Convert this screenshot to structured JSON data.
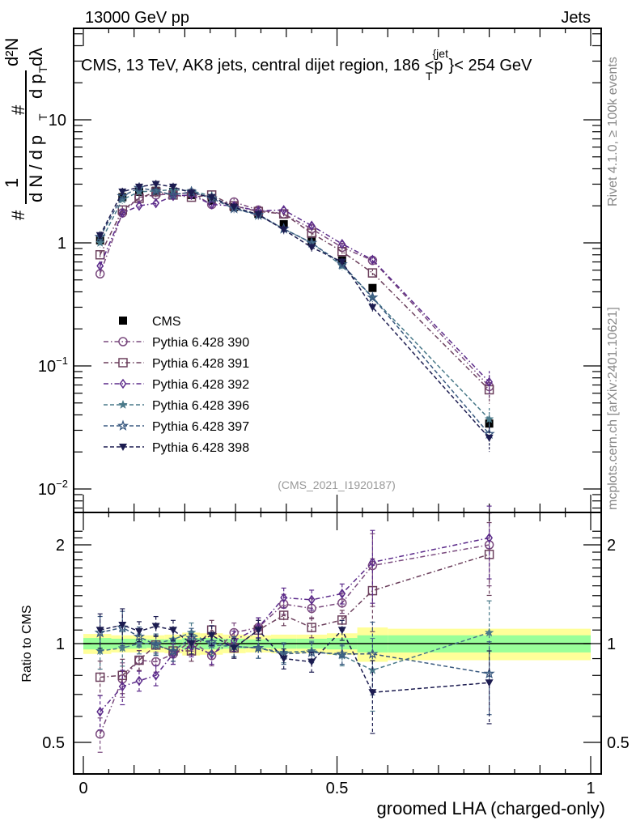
{
  "header": {
    "left_label": "13000 GeV pp",
    "right_label": "Jets"
  },
  "side_labels": {
    "rivet": "Rivet 4.1.0, ≥ 100k events",
    "mcplots": "mcplots.cern.ch [arXiv:2401.10621]"
  },
  "chart_data": [
    {
      "type": "line",
      "panel": "main",
      "title": "CMS, 13 TeV, AK8 jets, central dijet region, 186 <p_T^{jet}< 254 GeV",
      "title_parts": {
        "main": "CMS, 13 TeV, AK8 jets, central dijet region, 186 <p",
        "sup": "{jet",
        "sub": "T",
        "tail": "}< 254 GeV"
      },
      "ylabel_parts": {
        "hash1": "#",
        "one": "1",
        "den1": "d N / d p",
        "sub1": "T",
        "hash2": "#",
        "num2": "d²N",
        "den2": "d p",
        "sub2": "T",
        "dlam": " dλ"
      },
      "xlabel": "",
      "yscale": "log",
      "ylim": [
        0.006,
        60
      ],
      "xlim": [
        -0.01,
        1.0
      ],
      "yticks": [
        {
          "v": 0.01,
          "label": "10",
          "exp": "−2"
        },
        {
          "v": 0.1,
          "label": "10",
          "exp": "−1"
        },
        {
          "v": 1,
          "label": "1",
          "exp": ""
        },
        {
          "v": 10,
          "label": "10",
          "exp": ""
        }
      ],
      "annotation": "(CMS_2021_I1920187)",
      "legend_position": "center-left",
      "x": [
        0.033,
        0.077,
        0.11,
        0.143,
        0.177,
        0.213,
        0.253,
        0.297,
        0.345,
        0.395,
        0.45,
        0.51,
        0.57,
        0.8
      ],
      "series": [
        {
          "name": "CMS",
          "marker": "filled-square",
          "color": "#000000",
          "dash": "none",
          "values": [
            1.05,
            2.35,
            2.6,
            2.65,
            2.6,
            2.45,
            2.2,
            1.95,
            1.72,
            1.42,
            1.05,
            0.72,
            0.43,
            0.034
          ]
        },
        {
          "name": "Pythia 6.428 390",
          "marker": "open-circle",
          "color": "#7a4a7e",
          "dash": "dashdot",
          "values": [
            0.56,
            1.75,
            2.35,
            2.45,
            2.5,
            2.55,
            2.05,
            2.15,
            1.85,
            1.72,
            1.3,
            0.92,
            0.72,
            0.068
          ]
        },
        {
          "name": "Pythia 6.428 391",
          "marker": "open-square",
          "color": "#6b3f5c",
          "dash": "dashdot",
          "values": [
            0.8,
            1.85,
            2.3,
            2.6,
            2.45,
            2.35,
            2.45,
            2.0,
            1.8,
            1.72,
            1.2,
            0.85,
            0.57,
            0.064
          ]
        },
        {
          "name": "Pythia 6.428 392",
          "marker": "open-diamond",
          "color": "#5b2a8a",
          "dash": "dashdot",
          "values": [
            0.65,
            1.75,
            2.0,
            2.1,
            2.4,
            2.45,
            2.05,
            2.0,
            1.82,
            1.85,
            1.38,
            0.98,
            0.73,
            0.074
          ]
        },
        {
          "name": "Pythia 6.428 396",
          "marker": "filled-star",
          "color": "#4a7a8a",
          "dash": "dashed",
          "values": [
            1.0,
            2.25,
            2.6,
            2.65,
            2.7,
            2.65,
            2.4,
            1.9,
            1.7,
            1.3,
            1.0,
            0.65,
            0.36,
            0.037
          ]
        },
        {
          "name": "Pythia 6.428 397",
          "marker": "open-star",
          "color": "#3a5a80",
          "dash": "dashed",
          "values": [
            1.12,
            2.4,
            2.8,
            2.65,
            2.45,
            2.6,
            2.3,
            1.9,
            1.68,
            1.3,
            1.0,
            0.67,
            0.36,
            0.028
          ]
        },
        {
          "name": "Pythia 6.428 398",
          "marker": "filled-triangle-down",
          "color": "#1c1c50",
          "dash": "dashed",
          "values": [
            1.15,
            2.6,
            2.85,
            3.0,
            2.85,
            2.55,
            2.35,
            1.95,
            1.7,
            1.28,
            0.92,
            0.7,
            0.3,
            0.026
          ]
        }
      ]
    },
    {
      "type": "line",
      "panel": "ratio",
      "ylabel": "Ratio to CMS",
      "xlabel": "groomed LHA (charged-only)",
      "ylim": [
        0.4,
        2.3
      ],
      "xlim": [
        -0.01,
        1.0
      ],
      "yticks": [
        {
          "v": 0.5,
          "label": "0.5"
        },
        {
          "v": 1,
          "label": "1"
        },
        {
          "v": 2,
          "label": "2"
        }
      ],
      "xticks": [
        {
          "v": 0,
          "label": "0"
        },
        {
          "v": 0.5,
          "label": "0.5"
        },
        {
          "v": 1,
          "label": "1"
        }
      ],
      "uncertainty_bands": {
        "edges": [
          0.0,
          0.055,
          0.09,
          0.125,
          0.16,
          0.195,
          0.23,
          0.275,
          0.32,
          0.37,
          0.42,
          0.48,
          0.54,
          0.6,
          1.0
        ],
        "inner": [
          0.04,
          0.035,
          0.035,
          0.03,
          0.03,
          0.04,
          0.04,
          0.035,
          0.03,
          0.035,
          0.035,
          0.04,
          0.06,
          0.06
        ],
        "outer": [
          0.07,
          0.06,
          0.06,
          0.06,
          0.065,
          0.08,
          0.075,
          0.065,
          0.06,
          0.065,
          0.065,
          0.075,
          0.12,
          0.11
        ],
        "inner_color": "#99ff99",
        "outer_color": "#ffff99"
      },
      "x": [
        0.033,
        0.077,
        0.11,
        0.143,
        0.177,
        0.213,
        0.253,
        0.297,
        0.345,
        0.395,
        0.45,
        0.51,
        0.57,
        0.8
      ],
      "series": [
        {
          "name": "Pythia 6.428 390",
          "values": [
            0.53,
            0.78,
            0.89,
            0.88,
            0.93,
            1.02,
            0.92,
            1.08,
            1.12,
            1.32,
            1.28,
            1.33,
            1.73,
            2.0
          ]
        },
        {
          "name": "Pythia 6.428 391",
          "values": [
            0.79,
            0.8,
            0.89,
            0.99,
            0.95,
            0.95,
            1.1,
            0.97,
            1.1,
            1.22,
            1.12,
            1.18,
            1.45,
            1.87
          ]
        },
        {
          "name": "Pythia 6.428 392",
          "values": [
            0.62,
            0.74,
            0.77,
            0.8,
            0.93,
            0.98,
            0.93,
            1.02,
            1.12,
            1.38,
            1.36,
            1.42,
            1.77,
            2.1
          ]
        },
        {
          "name": "Pythia 6.428 396",
          "values": [
            0.95,
            0.97,
            1.0,
            1.0,
            1.03,
            1.08,
            0.99,
            0.98,
            0.97,
            0.94,
            0.95,
            0.92,
            0.83,
            1.08
          ]
        },
        {
          "name": "Pythia 6.428 397",
          "values": [
            1.08,
            1.12,
            1.05,
            0.99,
            0.95,
            1.04,
            1.01,
            0.98,
            0.97,
            0.93,
            0.94,
            0.93,
            0.93,
            0.81
          ]
        },
        {
          "name": "Pythia 6.428 398",
          "values": [
            1.1,
            1.14,
            1.09,
            1.13,
            1.1,
            1.0,
            1.06,
            0.97,
            1.1,
            0.9,
            0.88,
            1.1,
            0.71,
            0.76
          ]
        }
      ]
    }
  ]
}
